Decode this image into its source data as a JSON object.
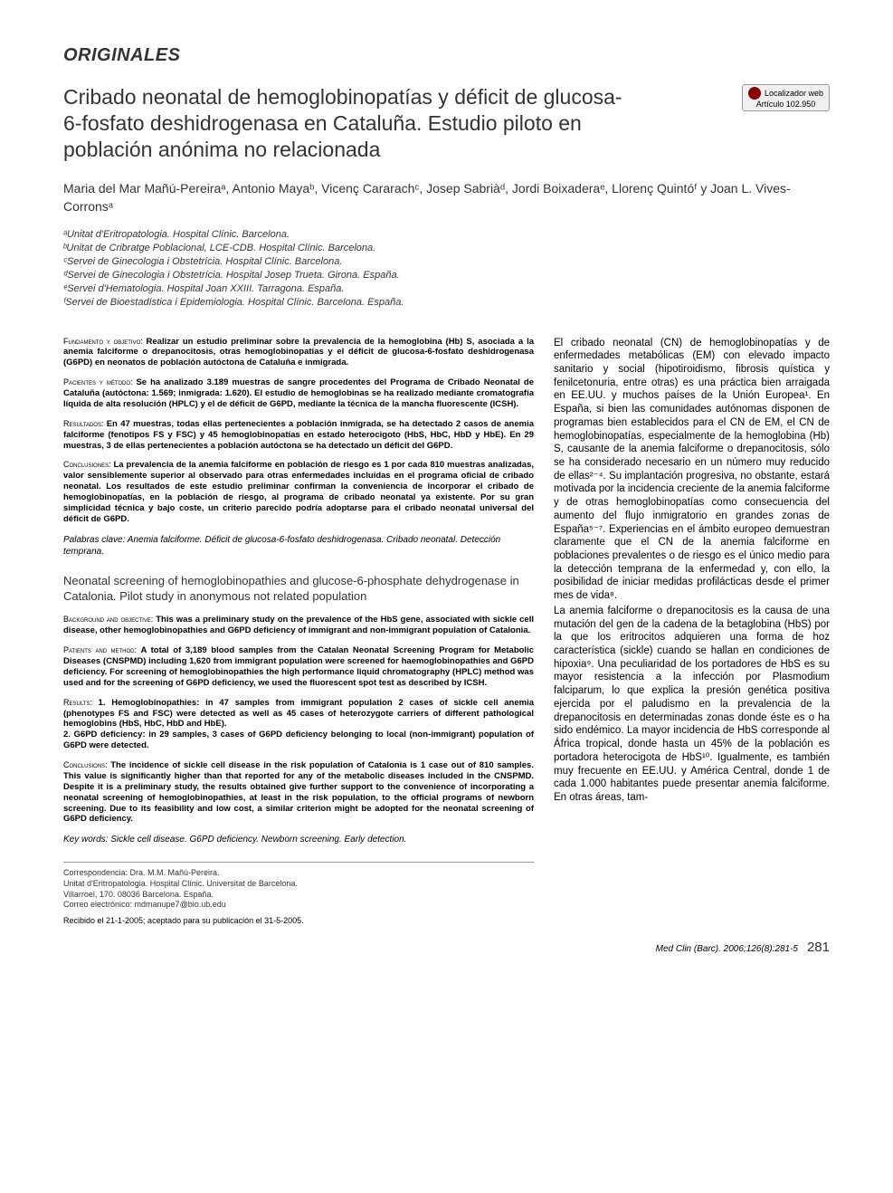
{
  "section_header": "ORIGINALES",
  "title": "Cribado neonatal de hemoglobinopatías y déficit de glucosa-6-fosfato deshidrogenasa en Cataluña. Estudio piloto en población anónima no relacionada",
  "web_locator": {
    "label": "Localizador web",
    "article": "Artículo 102.950"
  },
  "authors": "Maria del Mar Mañú-Pereiraᵃ, Antonio Mayaᵇ, Vicenç Cararachᶜ, Josep Sabriàᵈ, Jordi Boixaderaᵉ, Llorenç Quintóᶠ y Joan L. Vives-Corronsᵃ",
  "affiliations": [
    "ᵃUnitat d'Eritropatologia. Hospital Clínic. Barcelona.",
    "ᵇUnitat de Cribratge Poblacional, LCE-CDB. Hospital Clínic. Barcelona.",
    "ᶜServei de Ginecologia i Obstetrícia. Hospital Clínic. Barcelona.",
    "ᵈServei de Ginecologia i Obstetrícia. Hospital Josep Trueta. Girona. España.",
    "ᵉServei d'Hematologia. Hospital Joan XXIII. Tarragona. España.",
    "ᶠServei de Bioestadística i Epidemiologia. Hospital Clínic. Barcelona. España."
  ],
  "abstract_es": {
    "fundamento_label": "Fundamento y objetivo: ",
    "fundamento": "Realizar un estudio preliminar sobre la prevalencia de la hemoglobina (Hb) S, asociada a la anemia falciforme o drepanocitosis, otras hemoglobinopatías y el déficit de glucosa-6-fosfato deshidrogenasa (G6PD) en neonatos de población autóctona de Cataluña e inmigrada.",
    "pacientes_label": "Pacientes y método: ",
    "pacientes": "Se ha analizado 3.189 muestras de sangre procedentes del Programa de Cribado Neonatal de Cataluña (autóctona: 1.569; inmigrada: 1.620). El estudio de hemoglobinas se ha realizado mediante cromatografía líquida de alta resolución (HPLC) y el de déficit de G6PD, mediante la técnica de la mancha fluorescente (ICSH).",
    "resultados_label": "Resultados: ",
    "resultados": "En 47 muestras, todas ellas pertenecientes a población inmigrada, se ha detectado 2 casos de anemia falciforme (fenotipos FS y FSC) y 45 hemoglobinopatías en estado heterocigoto (HbS, HbC, HbD y HbE). En 29 muestras, 3 de ellas pertenecientes a población autóctona se ha detectado un déficit del G6PD.",
    "conclusiones_label": "Conclusiones: ",
    "conclusiones": "La prevalencia de la anemia falciforme en población de riesgo es 1 por cada 810 muestras analizadas, valor sensiblemente superior al observado para otras enfermedades incluidas en el programa oficial de cribado neonatal. Los resultados de este estudio preliminar confirman la conveniencia de incorporar el cribado de hemoglobinopatías, en la población de riesgo, al programa de cribado neonatal ya existente. Por su gran simplicidad técnica y bajo coste, un criterio parecido podría adoptarse para el cribado neonatal universal del déficit de G6PD."
  },
  "keywords_es": {
    "label": "Palabras clave: ",
    "text": "Anemia falciforme. Déficit de glucosa-6-fosfato deshidrogenasa. Cribado neonatal. Detección temprana."
  },
  "en_title": "Neonatal screening of hemoglobinopathies and glucose-6-phosphate dehydrogenase in Catalonia. Pilot study in anonymous not related population",
  "abstract_en": {
    "background_label": "Background and objective: ",
    "background": "This was a preliminary study on the prevalence of the HbS gene, associated with sickle cell disease, other hemoglobinopathies and G6PD deficiency of immigrant and non-immigrant population of Catalonia.",
    "patients_label": "Patients and method: ",
    "patients": "A total of 3,189 blood samples from the Catalan Neonatal Screening Program for Metabolic Diseases (CNSPMD) including 1,620 from immigrant population were screened for haemoglobinopathies and G6PD deficiency. For screening of hemoglobinopathies the high performance liquid chromatography (HPLC) method was used and for the screening of G6PD deficiency, we used the fluorescent spot test as described by ICSH.",
    "results_label": "Results: ",
    "results": "1. Hemoglobinopathies: in 47 samples from immigrant population 2 cases of sickle cell anemia (phenotypes FS and FSC) were detected as well as 45 cases of heterozygote carriers of different pathological hemoglobins (HbS, HbC, HbD and HbE).\n2. G6PD deficiency: in 29 samples, 3 cases of G6PD deficiency belonging to local (non-immigrant) population of G6PD were detected.",
    "conclusions_label": "Conclusions: ",
    "conclusions": "The incidence of sickle cell disease in the risk population of Catalonia is 1 case out of 810 samples. This value is significantly higher than that reported for any of the metabolic diseases included in the CNSPMD. Despite it is a preliminary study, the results obtained give further support to the convenience of incorporating a neonatal screening of hemoglobinopathies, at least in the risk population, to the official programs of newborn screening. Due to its feasibility and low cost, a similar criterion might be adopted for the neonatal screening of G6PD deficiency."
  },
  "keywords_en": {
    "label": "Key words: ",
    "text": "Sickle cell disease. G6PD deficiency. Newborn screening. Early detection."
  },
  "correspondence": {
    "line1": "Correspondencia: Dra. M.M. Mañú-Pereira.",
    "line2": "Unitat d'Eritropatologia. Hospital Clínic. Universitat de Barcelona.",
    "line3": "Villarroel, 170. 08036 Barcelona. España.",
    "line4": "Correo electrónico: mdmanupe7@bio.ub.edu"
  },
  "received": "Recibido el 21-1-2005; aceptado para su publicación el 31-5-2005.",
  "intro": "El cribado neonatal (CN) de hemoglobinopatías y de enfermedades metabólicas (EM) con elevado impacto sanitario y social (hipotiroidismo, fibrosis quística y fenilcetonuria, entre otras) es una práctica bien arraigada en EE.UU. y muchos países de la Unión Europea¹. En España, si bien las comunidades autónomas disponen de programas bien establecidos para el CN de EM, el CN de hemoglobinopatías, especialmente de la hemoglobina (Hb) S, causante de la anemia falciforme o drepanocitosis, sólo se ha considerado necesario en un número muy reducido de ellas²⁻⁴. Su implantación progresiva, no obstante, estará motivada por la incidencia creciente de la anemia falciforme y de otras hemoglobinopatías como consecuencia del aumento del flujo inmigratorio en grandes zonas de España⁵⁻⁷. Experiencias en el ámbito europeo demuestran claramente que el CN de la anemia falciforme en poblaciones prevalentes o de riesgo es el único medio para la detección temprana de la enfermedad y, con ello, la posibilidad de iniciar medidas profilácticas desde el primer mes de vida⁸.",
  "intro2": "La anemia falciforme o drepanocitosis es la causa de una mutación del gen de la cadena de la betaglobina (HbS) por la que los eritrocitos adquieren una forma de hoz característica (sickle) cuando se hallan en condiciones de hipoxia⁹. Una peculiaridad de los portadores de HbS es su mayor resistencia a la infección por Plasmodium falciparum, lo que explica la presión genética positiva ejercida por el paludismo en la prevalencia de la drepanocitosis en determinadas zonas donde éste es o ha sido endémico. La mayor incidencia de HbS corresponde al África tropical, donde hasta un 45% de la población es portadora heterocigota de HbS¹⁰. Igualmente, es también muy frecuente en EE.UU. y América Central, donde 1 de cada 1.000 habitantes puede presentar anemia falciforme. En otras áreas, tam-",
  "footer": {
    "citation": "Med Clin (Barc). 2006;126(8):281-5",
    "page": "281"
  },
  "colors": {
    "text": "#000000",
    "heading": "#333333",
    "divider": "#999999",
    "locator_bg": "#f0f0f0",
    "locator_icon": "#8a0000"
  }
}
